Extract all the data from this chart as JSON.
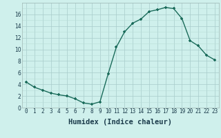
{
  "x": [
    0,
    1,
    2,
    3,
    4,
    5,
    6,
    7,
    8,
    9,
    10,
    11,
    12,
    13,
    14,
    15,
    16,
    17,
    18,
    19,
    20,
    21,
    22,
    23
  ],
  "y": [
    4.4,
    3.5,
    3.0,
    2.5,
    2.2,
    2.0,
    1.5,
    0.8,
    0.6,
    1.0,
    5.8,
    10.4,
    13.0,
    14.5,
    15.2,
    16.5,
    16.8,
    17.2,
    17.0,
    15.3,
    11.5,
    10.6,
    9.0,
    8.2
  ],
  "line_color": "#1a6b5a",
  "marker": "+",
  "marker_size": 3,
  "marker_linewidth": 1.2,
  "line_width": 1.0,
  "bg_color": "#cff0ec",
  "grid_minor_color": "#b8ddd8",
  "grid_major_color": "#a8ccca",
  "xlabel": "Humidex (Indice chaleur)",
  "xlim": [
    -0.5,
    23.5
  ],
  "ylim": [
    0,
    18
  ],
  "xticks": [
    0,
    1,
    2,
    3,
    4,
    5,
    6,
    7,
    8,
    9,
    10,
    11,
    12,
    13,
    14,
    15,
    16,
    17,
    18,
    19,
    20,
    21,
    22,
    23
  ],
  "yticks": [
    0,
    2,
    4,
    6,
    8,
    10,
    12,
    14,
    16
  ],
  "tick_fontsize": 5.5,
  "label_fontsize": 7.5,
  "label_color": "#1a3a4a",
  "spine_color": "#a0b8b5"
}
